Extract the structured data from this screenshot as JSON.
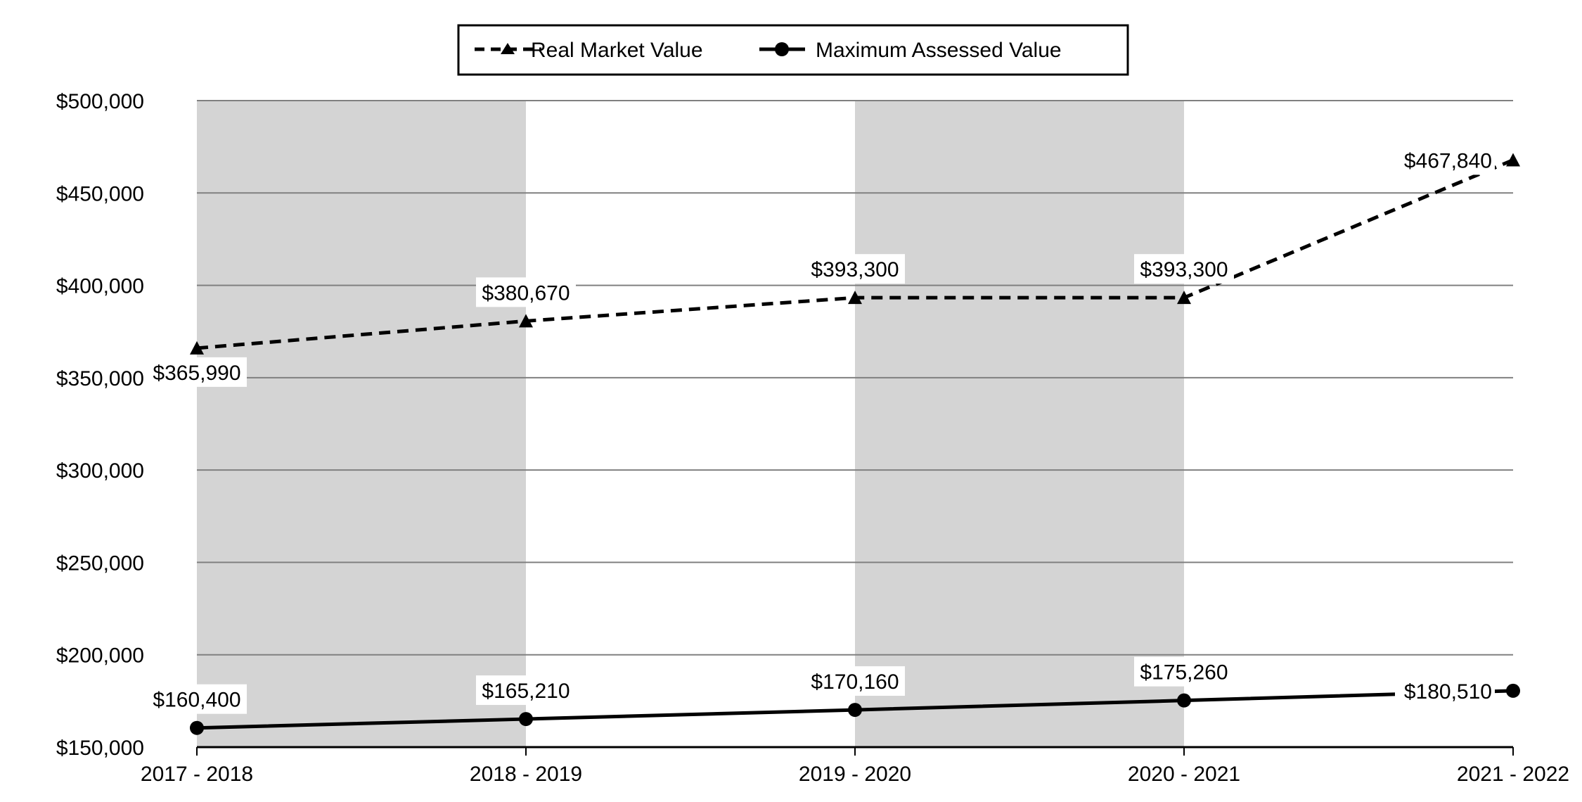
{
  "chart_data": {
    "type": "line",
    "categories": [
      "2017 - 2018",
      "2018 - 2019",
      "2019 - 2020",
      "2020 - 2021",
      "2021 - 2022"
    ],
    "series": [
      {
        "name": "Real Market Value",
        "values": [
          365990,
          380670,
          393300,
          393300,
          467840
        ],
        "labels": [
          "$365,990",
          "$380,670",
          "$393,300",
          "$393,300",
          "$467,840"
        ],
        "line": "dashed",
        "marker": "triangle"
      },
      {
        "name": "Maximum Assessed Value",
        "values": [
          160400,
          165210,
          170160,
          175260,
          180510
        ],
        "labels": [
          "$160,400",
          "$165,210",
          "$170,160",
          "$175,260",
          "$180,510"
        ],
        "line": "solid",
        "marker": "circle"
      }
    ],
    "ylim": [
      150000,
      500000
    ],
    "yticks": [
      150000,
      200000,
      250000,
      300000,
      350000,
      400000,
      450000,
      500000
    ],
    "ytick_labels": [
      "$150,000",
      "$200,000",
      "$250,000",
      "$300,000",
      "$350,000",
      "$400,000",
      "$450,000",
      "$500,000"
    ],
    "title": "",
    "xlabel": "",
    "ylabel": "",
    "grid": true,
    "legend": "top-center",
    "shaded_bands": [
      "2017 - 2018",
      "2019 - 2020"
    ],
    "colors": {
      "band": "#d4d4d4",
      "grid": "#808080",
      "line": "#000000"
    }
  }
}
